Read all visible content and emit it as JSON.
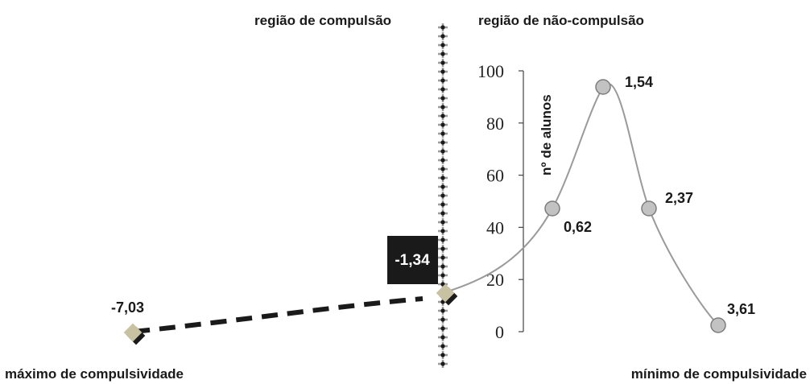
{
  "chart_data": {
    "type": "line",
    "region_left": "região de compulsão",
    "region_right": "região de não-compulsão",
    "extreme_left": "máximo de compulsividade",
    "extreme_right": "mínimo de compulsividade",
    "ylabel": "nº de alunos",
    "y_ticks": [
      "100",
      "80",
      "60",
      "40",
      "20",
      "0"
    ],
    "ylim": [
      0,
      100
    ],
    "series_points": [
      {
        "label": "0,62",
        "x": 0.62,
        "y": 47
      },
      {
        "label": "1,54",
        "x": 1.54,
        "y": 94
      },
      {
        "label": "2,37",
        "x": 2.37,
        "y": 47
      },
      {
        "label": "3,61",
        "x": 3.61,
        "y": 3
      }
    ],
    "markers": [
      {
        "label": "-7,03",
        "x": -7.03,
        "y": 0
      },
      {
        "label": "-1,34",
        "x": -1.34,
        "y": 15
      }
    ],
    "colors": {
      "line": "#9a9a9a",
      "point_fill": "#c2c2c2",
      "marker_fill": "#c8c2a2",
      "marker_shadow": "#1a1a1a",
      "boundary_box": "#1a1a1a",
      "dashed": "#1a1a1a"
    }
  }
}
